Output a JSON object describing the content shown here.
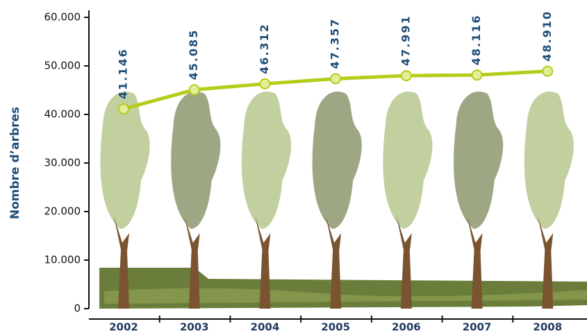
{
  "chart_data": {
    "type": "line",
    "y_label": "Nombre d’arbres",
    "categories": [
      "2002",
      "2003",
      "2004",
      "2005",
      "2006",
      "2007",
      "2008"
    ],
    "values": [
      41146,
      45085,
      46312,
      47357,
      47991,
      48116,
      48910
    ],
    "value_labels": [
      "41.146",
      "45.085",
      "46.312",
      "47.357",
      "47.991",
      "48.116",
      "48.910"
    ],
    "color": "#b5cc1a",
    "ylim": [
      0,
      60000
    ],
    "yticks": [
      0,
      {
        "value": 10000,
        "label": "10.000"
      },
      {
        "value": 20000,
        "label": "20.000"
      },
      {
        "value": 30000,
        "label": "30.000"
      },
      {
        "value": 40000,
        "label": "40.000"
      },
      {
        "value": 50000,
        "label": "50.000"
      },
      {
        "value": 60000,
        "label": "60.000"
      }
    ]
  }
}
